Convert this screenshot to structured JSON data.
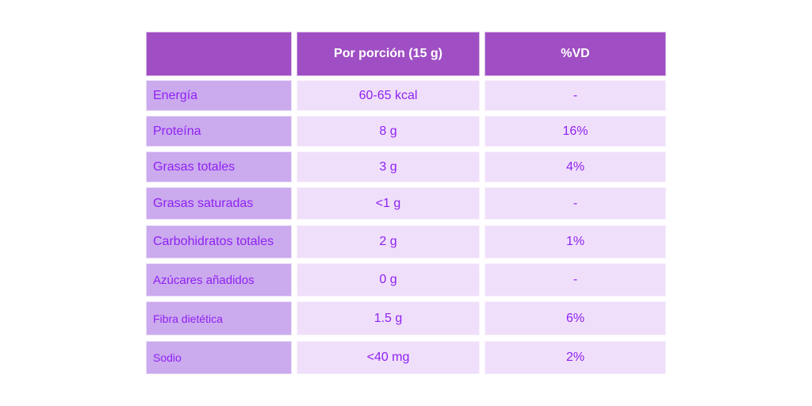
{
  "table": {
    "headers": [
      "",
      "Por porción (15 g)",
      "%VD"
    ],
    "rows": [
      {
        "nutrient": "Energía",
        "per_serving": "60-65 kcal",
        "dv": "-"
      },
      {
        "nutrient": "Proteína",
        "per_serving": "8 g",
        "dv": "16%"
      },
      {
        "nutrient": "Grasas totales",
        "per_serving": "3 g",
        "dv": "4%"
      },
      {
        "nutrient": "Grasas saturadas",
        "per_serving": "<1 g",
        "dv": "-"
      },
      {
        "nutrient": "Carbohidratos totales",
        "per_serving": "2 g",
        "dv": "1%"
      },
      {
        "nutrient": "Azúcares añadidos",
        "per_serving": "0 g",
        "dv": "-"
      },
      {
        "nutrient": "Fibra dietética",
        "per_serving": "1.5 g",
        "dv": "6%"
      },
      {
        "nutrient": "Sodio",
        "per_serving": "<40 mg",
        "dv": "2%"
      }
    ]
  },
  "colors": {
    "header": "#9f4fc3",
    "label_column": "#cbaaee",
    "cell": "#f0dffb",
    "text": "#8f22f2"
  }
}
